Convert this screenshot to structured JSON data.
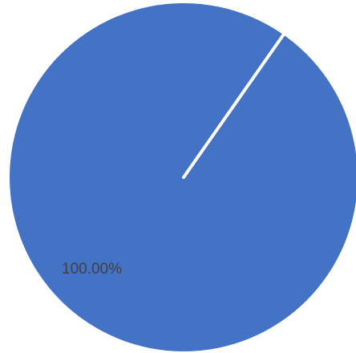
{
  "chart_data": {
    "type": "pie",
    "slices": [
      {
        "value": 100.0,
        "label": "100.00%",
        "color": "#4472C4"
      }
    ],
    "separator_color": "#ffffff",
    "legend": "none"
  }
}
